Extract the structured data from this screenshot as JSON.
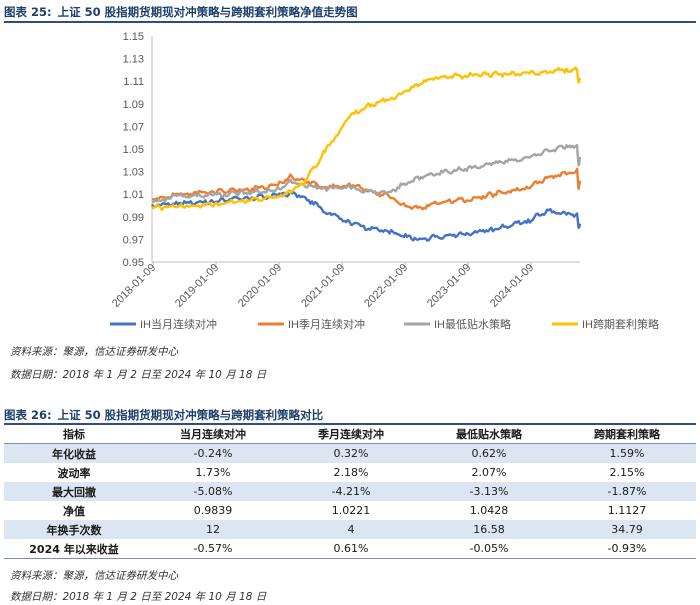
{
  "figure1": {
    "number": "图表 25:",
    "title": "上证 50 股指期货期现对冲策略与跨期套利策略净值走势图",
    "source": "资料来源：聚源，信达证券研发中心",
    "date_range": "数据日期：2018 年 1 月 2 日至 2024 年 10 月 18 日"
  },
  "figure2": {
    "number": "图表 26:",
    "title": "上证 50 股指期货期现对冲策略与跨期套利策略对比",
    "source": "资料来源：聚源，信达证券研发中心",
    "date_range": "数据日期：2018 年 1 月 2 日至 2024 年 10 月 18 日"
  },
  "table": {
    "headers": [
      "指标",
      "当月连续对冲",
      "季月连续对冲",
      "最低贴水策略",
      "跨期套利策略"
    ],
    "rows": [
      {
        "label": "年化收益",
        "values": [
          "-0.24%",
          "0.32%",
          "0.62%",
          "1.59%"
        ]
      },
      {
        "label": "波动率",
        "values": [
          "1.73%",
          "2.18%",
          "2.07%",
          "2.15%"
        ]
      },
      {
        "label": "最大回撤",
        "values": [
          "-5.08%",
          "-4.21%",
          "-3.13%",
          "-1.87%"
        ]
      },
      {
        "label": "净值",
        "values": [
          "0.9839",
          "1.0221",
          "1.0428",
          "1.1127"
        ]
      },
      {
        "label": "年换手次数",
        "values": [
          "12",
          "4",
          "16.58",
          "34.79"
        ]
      },
      {
        "label": "2024 年以来收益",
        "values": [
          "-0.57%",
          "0.61%",
          "-0.05%",
          "-0.93%"
        ]
      }
    ]
  },
  "chart_data": {
    "type": "line",
    "x_type": "date",
    "xlim": [
      "2018-01-02",
      "2024-10-18"
    ],
    "x_ticks": [
      "2018-01-09",
      "2019-01-09",
      "2020-01-09",
      "2021-01-09",
      "2022-01-09",
      "2023-01-09",
      "2024-01-09"
    ],
    "ylim": [
      0.95,
      1.15
    ],
    "y_ticks": [
      0.95,
      0.97,
      0.99,
      1.01,
      1.03,
      1.05,
      1.07,
      1.09,
      1.11,
      1.13,
      1.15
    ],
    "y_tick_labels": [
      "0.95",
      "0.97",
      "0.99",
      "1.01",
      "1.03",
      "1.05",
      "1.07",
      "1.09",
      "1.11",
      "1.13",
      "1.15"
    ],
    "grid": false,
    "legend_position": "bottom",
    "series": [
      {
        "name": "IH当月连续对冲",
        "color": "#4472c4",
        "x": [
          "2018-01-02",
          "2018-06-01",
          "2019-01-01",
          "2019-06-01",
          "2020-01-01",
          "2020-03-15",
          "2020-06-01",
          "2020-10-01",
          "2021-03-01",
          "2021-06-01",
          "2021-10-01",
          "2022-01-01",
          "2022-04-01",
          "2022-07-01",
          "2023-01-01",
          "2023-06-01",
          "2024-01-01",
          "2024-04-01",
          "2024-08-01",
          "2024-10-01",
          "2024-10-10",
          "2024-10-18"
        ],
        "values": [
          1.0,
          1.002,
          1.004,
          1.006,
          1.009,
          1.011,
          1.008,
          0.995,
          0.985,
          0.98,
          0.977,
          0.973,
          0.97,
          0.972,
          0.975,
          0.979,
          0.987,
          0.995,
          0.993,
          0.991,
          0.978,
          0.984
        ]
      },
      {
        "name": "IH季月连续对冲",
        "color": "#ed7d31",
        "x": [
          "2018-01-02",
          "2018-06-01",
          "2019-01-01",
          "2019-06-01",
          "2020-01-01",
          "2020-03-15",
          "2020-06-01",
          "2020-10-01",
          "2021-03-01",
          "2021-06-01",
          "2021-10-01",
          "2022-01-01",
          "2022-04-01",
          "2022-07-01",
          "2023-01-01",
          "2023-06-01",
          "2024-01-01",
          "2024-04-01",
          "2024-08-01",
          "2024-10-01",
          "2024-10-10",
          "2024-10-18"
        ],
        "values": [
          1.005,
          1.01,
          1.012,
          1.014,
          1.018,
          1.026,
          1.022,
          1.016,
          1.018,
          1.014,
          1.008,
          1.0,
          0.997,
          1.003,
          1.005,
          1.01,
          1.016,
          1.024,
          1.028,
          1.032,
          1.015,
          1.022
        ]
      },
      {
        "name": "IH最低贴水策略",
        "color": "#a5a5a5",
        "x": [
          "2018-01-02",
          "2018-06-01",
          "2019-01-01",
          "2019-06-01",
          "2020-01-01",
          "2020-03-15",
          "2020-06-01",
          "2020-10-01",
          "2021-03-01",
          "2021-06-01",
          "2021-10-01",
          "2022-01-01",
          "2022-04-01",
          "2022-07-01",
          "2023-01-01",
          "2023-06-01",
          "2024-01-01",
          "2024-04-01",
          "2024-08-01",
          "2024-10-01",
          "2024-10-10",
          "2024-10-18"
        ],
        "values": [
          1.003,
          1.008,
          1.009,
          1.011,
          1.014,
          1.022,
          1.018,
          1.015,
          1.016,
          1.013,
          1.011,
          1.019,
          1.024,
          1.028,
          1.033,
          1.037,
          1.043,
          1.048,
          1.052,
          1.053,
          1.035,
          1.043
        ]
      },
      {
        "name": "IH跨期套利策略",
        "color": "#ffc000",
        "x": [
          "2018-01-02",
          "2018-06-01",
          "2019-01-01",
          "2019-06-01",
          "2020-01-01",
          "2020-03-15",
          "2020-06-01",
          "2020-10-01",
          "2021-03-01",
          "2021-06-01",
          "2021-10-01",
          "2022-01-01",
          "2022-04-01",
          "2022-07-01",
          "2023-01-01",
          "2023-06-01",
          "2024-01-01",
          "2024-04-01",
          "2024-08-01",
          "2024-10-01",
          "2024-10-10",
          "2024-10-18"
        ],
        "values": [
          0.998,
          0.999,
          1.001,
          1.004,
          1.008,
          1.012,
          1.02,
          1.048,
          1.08,
          1.088,
          1.094,
          1.1,
          1.108,
          1.113,
          1.115,
          1.116,
          1.117,
          1.118,
          1.12,
          1.121,
          1.11,
          1.113
        ]
      }
    ]
  }
}
